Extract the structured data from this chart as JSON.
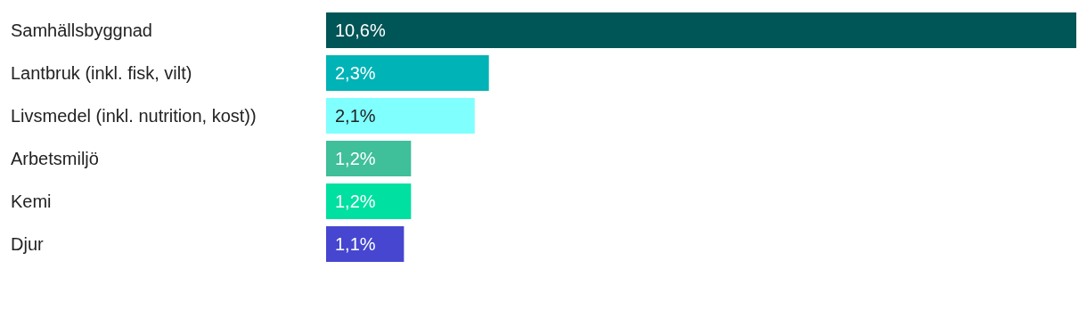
{
  "chart_data": {
    "type": "bar",
    "orientation": "horizontal",
    "categories": [
      "Samhällsbyggnad",
      "Lantbruk (inkl. fisk, vilt)",
      "Livsmedel (inkl. nutrition, kost))",
      "Arbetsmiljö",
      "Kemi",
      "Djur"
    ],
    "values": [
      10.6,
      2.3,
      2.1,
      1.2,
      1.2,
      1.1
    ],
    "value_labels": [
      "10,6%",
      "2,3%",
      "2,1%",
      "1,2%",
      "1,2%",
      "1,1%"
    ],
    "colors": [
      "#005557",
      "#00b3b6",
      "#80ffff",
      "#3fbf9a",
      "#00e0a0",
      "#4646d0"
    ]
  }
}
